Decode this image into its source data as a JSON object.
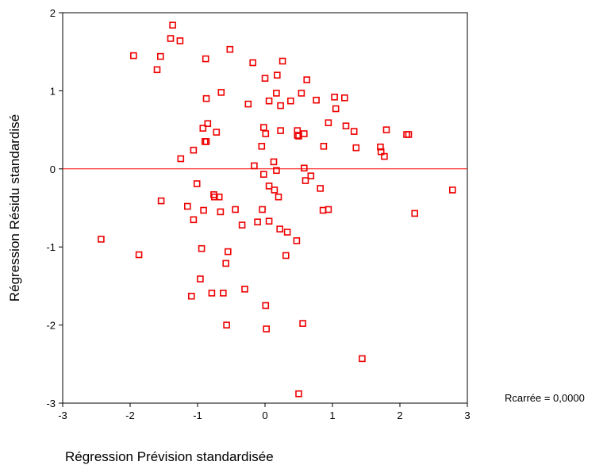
{
  "chart_data": {
    "type": "scatter",
    "xlabel": "Régression Prévision standardisée",
    "ylabel": "Régression Résidu standardisé",
    "annotation": "Rcarrée = 0,0000",
    "xlim": [
      -3,
      3
    ],
    "ylim": [
      -3,
      2
    ],
    "x_ticks": [
      "-3",
      "-2",
      "-1",
      "0",
      "1",
      "2",
      "3"
    ],
    "y_ticks": [
      "-3",
      "-2",
      "-1",
      "0",
      "1",
      "2"
    ],
    "grid": false,
    "reference_line": {
      "y": 0,
      "color": "#ff0000"
    },
    "marker": {
      "shape": "square",
      "fill": "none",
      "color": "#ee0000"
    },
    "points": [
      [
        -1.37,
        1.84
      ],
      [
        -0.52,
        1.53
      ],
      [
        -1.4,
        1.67
      ],
      [
        -1.26,
        1.64
      ],
      [
        -1.95,
        1.45
      ],
      [
        -1.55,
        1.44
      ],
      [
        -0.88,
        1.41
      ],
      [
        -1.6,
        1.27
      ],
      [
        -0.18,
        1.36
      ],
      [
        0.26,
        1.38
      ],
      [
        0.18,
        1.2
      ],
      [
        0.0,
        1.16
      ],
      [
        0.62,
        1.14
      ],
      [
        -0.65,
        0.98
      ],
      [
        -0.87,
        0.9
      ],
      [
        0.17,
        0.97
      ],
      [
        0.06,
        0.87
      ],
      [
        0.23,
        0.81
      ],
      [
        0.38,
        0.87
      ],
      [
        0.54,
        0.97
      ],
      [
        0.76,
        0.88
      ],
      [
        1.03,
        0.92
      ],
      [
        1.18,
        0.91
      ],
      [
        1.05,
        0.77
      ],
      [
        -0.25,
        0.83
      ],
      [
        -0.85,
        0.58
      ],
      [
        -0.92,
        0.52
      ],
      [
        -0.72,
        0.47
      ],
      [
        -0.02,
        0.53
      ],
      [
        0.01,
        0.45
      ],
      [
        0.23,
        0.49
      ],
      [
        0.48,
        0.49
      ],
      [
        0.48,
        0.43
      ],
      [
        0.58,
        0.45
      ],
      [
        0.5,
        0.42
      ],
      [
        0.94,
        0.59
      ],
      [
        1.2,
        0.55
      ],
      [
        1.32,
        0.48
      ],
      [
        1.8,
        0.5
      ],
      [
        2.1,
        0.44
      ],
      [
        2.13,
        0.44
      ],
      [
        -0.89,
        0.35
      ],
      [
        -0.87,
        0.35
      ],
      [
        -1.06,
        0.24
      ],
      [
        -0.05,
        0.29
      ],
      [
        0.87,
        0.29
      ],
      [
        1.35,
        0.27
      ],
      [
        1.71,
        0.28
      ],
      [
        1.72,
        0.22
      ],
      [
        1.77,
        0.16
      ],
      [
        -1.25,
        0.13
      ],
      [
        -0.16,
        0.04
      ],
      [
        0.13,
        0.09
      ],
      [
        0.17,
        -0.02
      ],
      [
        0.58,
        0.01
      ],
      [
        -0.02,
        -0.07
      ],
      [
        0.68,
        -0.09
      ],
      [
        0.6,
        -0.15
      ],
      [
        -1.01,
        -0.19
      ],
      [
        0.06,
        -0.22
      ],
      [
        0.14,
        -0.27
      ],
      [
        0.82,
        -0.25
      ],
      [
        2.78,
        -0.27
      ],
      [
        -0.76,
        -0.33
      ],
      [
        -0.75,
        -0.36
      ],
      [
        -0.68,
        -0.36
      ],
      [
        0.2,
        -0.36
      ],
      [
        -1.54,
        -0.41
      ],
      [
        -1.15,
        -0.48
      ],
      [
        -0.91,
        -0.53
      ],
      [
        -0.44,
        -0.52
      ],
      [
        -0.04,
        -0.52
      ],
      [
        0.86,
        -0.53
      ],
      [
        0.94,
        -0.52
      ],
      [
        -0.66,
        -0.55
      ],
      [
        2.22,
        -0.57
      ],
      [
        -1.06,
        -0.65
      ],
      [
        -0.11,
        -0.68
      ],
      [
        0.06,
        -0.67
      ],
      [
        -0.34,
        -0.72
      ],
      [
        0.22,
        -0.77
      ],
      [
        0.33,
        -0.81
      ],
      [
        0.47,
        -0.92
      ],
      [
        -2.43,
        -0.9
      ],
      [
        -0.94,
        -1.02
      ],
      [
        -0.55,
        -1.06
      ],
      [
        -1.87,
        -1.1
      ],
      [
        0.31,
        -1.11
      ],
      [
        -0.58,
        -1.21
      ],
      [
        -0.96,
        -1.41
      ],
      [
        -0.3,
        -1.54
      ],
      [
        -0.79,
        -1.59
      ],
      [
        -0.62,
        -1.59
      ],
      [
        -1.09,
        -1.63
      ],
      [
        0.01,
        -1.75
      ],
      [
        -0.57,
        -2.0
      ],
      [
        0.56,
        -1.98
      ],
      [
        0.02,
        -2.05
      ],
      [
        1.44,
        -2.43
      ],
      [
        0.5,
        -2.88
      ]
    ]
  }
}
